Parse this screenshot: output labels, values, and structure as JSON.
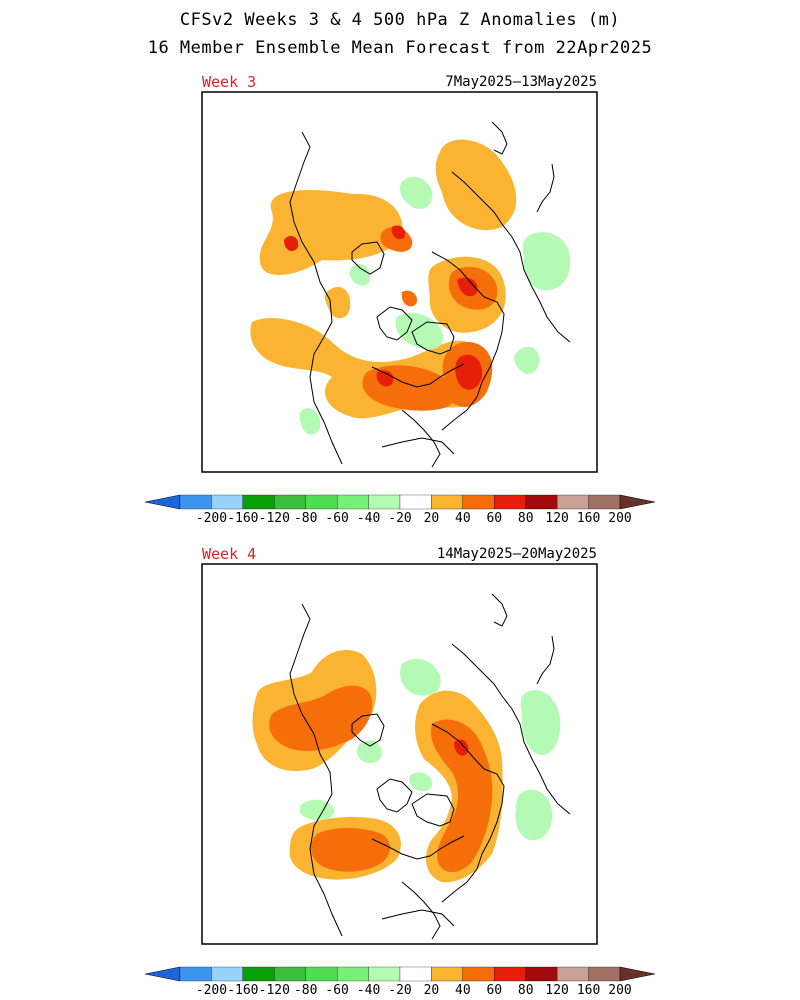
{
  "title_line1": "CFSv2 Weeks 3 & 4 500 hPa Z Anomalies (m)",
  "title_line2": "16 Member Ensemble Mean Forecast from 22Apr2025",
  "panels": [
    {
      "week_label": "Week 3",
      "date_range": "7May2025–13May2025"
    },
    {
      "week_label": "Week 4",
      "date_range": "14May2025–20May2025"
    }
  ],
  "colorbar": {
    "labels": [
      "-200",
      "-160",
      "-120",
      "-80",
      "-60",
      "-40",
      "-20",
      "20",
      "40",
      "60",
      "80",
      "120",
      "160",
      "200"
    ],
    "colors": [
      "#1e64dc",
      "#3c96f0",
      "#96d2fa",
      "#0aa00a",
      "#3cbe3c",
      "#50dc50",
      "#78f078",
      "#b4fab4",
      "#ffffff",
      "#fab432",
      "#f56e0a",
      "#e61e0a",
      "#a00a0a",
      "#c8a096",
      "#a07064",
      "#643228"
    ],
    "units": "m"
  },
  "colors": {
    "positive_20": "#fab432",
    "positive_40": "#f56e0a",
    "positive_60": "#e61e0a",
    "negative_20": "#b4fab4",
    "coastline": "#000000",
    "week_label": "#dd2222"
  }
}
